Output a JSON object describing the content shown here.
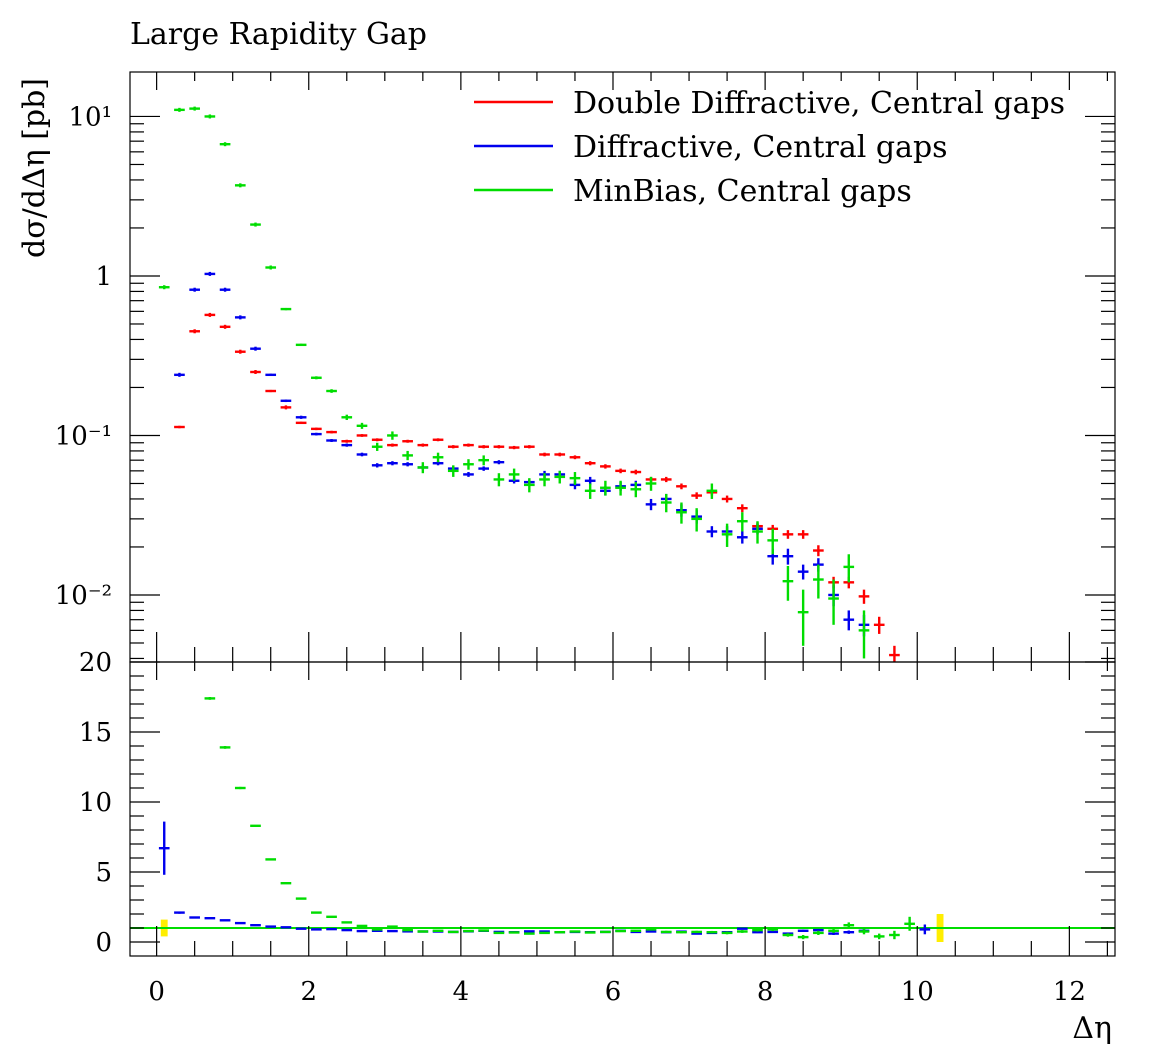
{
  "chart_data": {
    "type": "scatter",
    "title": "Large Rapidity Gap",
    "xlabel": "Δη",
    "ylabel": "dσ/dΔη [pb]",
    "xlim": [
      -0.35,
      12.6
    ],
    "x_ticks": [
      0,
      2,
      4,
      6,
      8,
      10,
      12
    ],
    "x_tick_labels": [
      "0",
      "2",
      "4",
      "6",
      "8",
      "10",
      "12"
    ],
    "upper": {
      "yscale": "log",
      "ylim": [
        0.0038,
        19
      ],
      "y_ticks": [
        0.01,
        0.1,
        1,
        10
      ],
      "y_tick_labels": [
        "10⁻²",
        "10⁻¹",
        "1",
        "10¹"
      ]
    },
    "ratio": {
      "ylim": [
        -1.0,
        20.0
      ],
      "y_ticks": [
        0,
        5,
        10,
        15,
        20
      ],
      "y_tick_labels": [
        "0",
        "5",
        "10",
        "15",
        "20"
      ],
      "reference_line": 1.0
    },
    "legend": {
      "position": "top-right"
    },
    "bin_width": 0.2,
    "series": [
      {
        "name": "Double Diffractive, Central gaps",
        "color": "#ff0000",
        "x": [
          0.3,
          0.5,
          0.7,
          0.9,
          1.1,
          1.3,
          1.5,
          1.7,
          1.9,
          2.1,
          2.3,
          2.5,
          2.7,
          2.9,
          3.1,
          3.3,
          3.5,
          3.7,
          3.9,
          4.1,
          4.3,
          4.5,
          4.7,
          4.9,
          5.1,
          5.3,
          5.5,
          5.7,
          5.9,
          6.1,
          6.3,
          6.5,
          6.7,
          6.9,
          7.1,
          7.3,
          7.5,
          7.7,
          7.9,
          8.1,
          8.3,
          8.5,
          8.7,
          8.9,
          9.1,
          9.3,
          9.5,
          9.7
        ],
        "y": [
          0.113,
          0.45,
          0.57,
          0.48,
          0.335,
          0.25,
          0.19,
          0.15,
          0.12,
          0.11,
          0.105,
          0.092,
          0.1,
          0.094,
          0.087,
          0.092,
          0.087,
          0.094,
          0.085,
          0.087,
          0.085,
          0.085,
          0.084,
          0.085,
          0.076,
          0.076,
          0.073,
          0.067,
          0.064,
          0.06,
          0.059,
          0.053,
          0.053,
          0.048,
          0.042,
          0.044,
          0.04,
          0.035,
          0.027,
          0.026,
          0.024,
          0.024,
          0.019,
          0.012,
          0.012,
          0.0098,
          0.0065,
          0.0042
        ],
        "yerr": [
          0.002,
          0.006,
          0.007,
          0.006,
          0.004,
          0.003,
          0.003,
          0.002,
          0.002,
          0.002,
          0.002,
          0.002,
          0.002,
          0.002,
          0.002,
          0.002,
          0.002,
          0.002,
          0.002,
          0.002,
          0.002,
          0.002,
          0.002,
          0.002,
          0.002,
          0.002,
          0.002,
          0.002,
          0.002,
          0.002,
          0.002,
          0.002,
          0.002,
          0.002,
          0.002,
          0.002,
          0.002,
          0.002,
          0.0015,
          0.0015,
          0.0015,
          0.0015,
          0.0015,
          0.001,
          0.001,
          0.001,
          0.0008,
          0.0006
        ],
        "ratio_y": [],
        "ratio_err": []
      },
      {
        "name": "Diffractive, Central gaps",
        "color": "#0000ee",
        "x": [
          0.3,
          0.5,
          0.7,
          0.9,
          1.1,
          1.3,
          1.5,
          1.7,
          1.9,
          2.1,
          2.3,
          2.5,
          2.7,
          2.9,
          3.1,
          3.3,
          3.5,
          3.7,
          3.9,
          4.1,
          4.3,
          4.5,
          4.7,
          4.9,
          5.1,
          5.3,
          5.5,
          5.7,
          5.9,
          6.1,
          6.3,
          6.5,
          6.7,
          6.9,
          7.1,
          7.3,
          7.5,
          7.7,
          7.9,
          8.1,
          8.3,
          8.5,
          8.7,
          8.9,
          9.1,
          9.3
        ],
        "y": [
          0.24,
          0.82,
          1.03,
          0.82,
          0.55,
          0.35,
          0.24,
          0.165,
          0.13,
          0.102,
          0.093,
          0.087,
          0.076,
          0.065,
          0.067,
          0.066,
          0.063,
          0.067,
          0.062,
          0.057,
          0.062,
          0.068,
          0.052,
          0.051,
          0.057,
          0.057,
          0.049,
          0.052,
          0.045,
          0.048,
          0.049,
          0.037,
          0.04,
          0.034,
          0.031,
          0.025,
          0.025,
          0.023,
          0.026,
          0.0175,
          0.0175,
          0.014,
          0.0155,
          0.01,
          0.007,
          0.0065
        ],
        "yerr": [
          0.003,
          0.01,
          0.012,
          0.01,
          0.007,
          0.005,
          0.004,
          0.003,
          0.003,
          0.002,
          0.002,
          0.002,
          0.002,
          0.002,
          0.002,
          0.002,
          0.002,
          0.002,
          0.002,
          0.002,
          0.002,
          0.002,
          0.002,
          0.002,
          0.003,
          0.003,
          0.003,
          0.003,
          0.003,
          0.003,
          0.003,
          0.003,
          0.003,
          0.003,
          0.003,
          0.002,
          0.002,
          0.002,
          0.002,
          0.002,
          0.002,
          0.0015,
          0.0015,
          0.0015,
          0.001,
          0.001
        ],
        "ratio_y": [
          6.7,
          2.1,
          1.75,
          1.7,
          1.55,
          1.35,
          1.2,
          1.1,
          1.05,
          0.95,
          0.9,
          0.92,
          0.85,
          0.78,
          0.8,
          0.78,
          0.76,
          0.75,
          0.75,
          0.72,
          0.76,
          0.8,
          0.72,
          0.7,
          0.76,
          0.75,
          0.7,
          0.72,
          0.7,
          0.72,
          0.8,
          0.72,
          0.75,
          0.7,
          0.74,
          0.6,
          0.65,
          0.7,
          0.95,
          0.7,
          0.72,
          0.6,
          0.8,
          0.85,
          0.6,
          0.7,
          0.8,
          0.9
        ],
        "ratio_x": [
          0.1,
          0.3,
          0.5,
          0.7,
          0.9,
          1.1,
          1.3,
          1.5,
          1.7,
          1.9,
          2.1,
          2.3,
          2.5,
          2.7,
          2.9,
          3.1,
          3.3,
          3.5,
          3.7,
          3.9,
          4.1,
          4.3,
          4.5,
          4.7,
          4.9,
          5.1,
          5.3,
          5.5,
          5.7,
          5.9,
          6.1,
          6.3,
          6.5,
          6.7,
          6.9,
          7.1,
          7.3,
          7.5,
          7.7,
          7.9,
          8.1,
          8.3,
          8.5,
          8.7,
          8.9,
          9.1,
          9.3,
          10.1
        ],
        "ratio_err": [
          1.9,
          0.08,
          0.05,
          0.04,
          0.04,
          0.03,
          0.03,
          0.03,
          0.03,
          0.03,
          0.03,
          0.03,
          0.03,
          0.03,
          0.03,
          0.03,
          0.03,
          0.03,
          0.03,
          0.03,
          0.03,
          0.03,
          0.03,
          0.03,
          0.03,
          0.03,
          0.03,
          0.03,
          0.03,
          0.03,
          0.04,
          0.04,
          0.04,
          0.04,
          0.04,
          0.04,
          0.05,
          0.05,
          0.06,
          0.06,
          0.07,
          0.07,
          0.08,
          0.08,
          0.1,
          0.12,
          0.15,
          0.35
        ]
      },
      {
        "name": "MinBias, Central gaps",
        "color": "#00dd00",
        "x": [
          0.1,
          0.3,
          0.5,
          0.7,
          0.9,
          1.1,
          1.3,
          1.5,
          1.7,
          1.9,
          2.1,
          2.3,
          2.5,
          2.7,
          2.9,
          3.1,
          3.3,
          3.5,
          3.7,
          3.9,
          4.1,
          4.3,
          4.5,
          4.7,
          4.9,
          5.1,
          5.3,
          5.5,
          5.7,
          5.9,
          6.1,
          6.3,
          6.5,
          6.7,
          6.9,
          7.1,
          7.3,
          7.5,
          7.7,
          7.9,
          8.1,
          8.3,
          8.5,
          8.7,
          8.9,
          9.1,
          9.3
        ],
        "y": [
          0.85,
          11.0,
          11.2,
          10.0,
          6.7,
          3.7,
          2.1,
          1.13,
          0.62,
          0.37,
          0.23,
          0.19,
          0.13,
          0.115,
          0.085,
          0.1,
          0.075,
          0.063,
          0.073,
          0.06,
          0.066,
          0.07,
          0.053,
          0.057,
          0.049,
          0.053,
          0.055,
          0.054,
          0.045,
          0.047,
          0.047,
          0.046,
          0.05,
          0.038,
          0.033,
          0.03,
          0.045,
          0.024,
          0.029,
          0.025,
          0.022,
          0.0122,
          0.0078,
          0.0125,
          0.0095,
          0.015,
          0.006
        ],
        "yerr": [
          0.01,
          0.1,
          0.1,
          0.1,
          0.06,
          0.04,
          0.03,
          0.015,
          0.01,
          0.006,
          0.005,
          0.005,
          0.005,
          0.005,
          0.005,
          0.006,
          0.005,
          0.005,
          0.005,
          0.005,
          0.005,
          0.005,
          0.005,
          0.005,
          0.005,
          0.005,
          0.005,
          0.005,
          0.005,
          0.005,
          0.005,
          0.005,
          0.005,
          0.005,
          0.005,
          0.005,
          0.005,
          0.004,
          0.004,
          0.004,
          0.004,
          0.003,
          0.003,
          0.003,
          0.003,
          0.003,
          0.002
        ],
        "ratio_x": [
          0.7,
          0.9,
          1.1,
          1.3,
          1.5,
          1.7,
          1.9,
          2.1,
          2.3,
          2.5,
          2.7,
          2.9,
          3.1,
          3.3,
          3.5,
          3.7,
          3.9,
          4.1,
          4.3,
          4.5,
          4.7,
          4.9,
          5.1,
          5.3,
          5.5,
          5.7,
          5.9,
          6.1,
          6.3,
          6.5,
          6.7,
          6.9,
          7.1,
          7.3,
          7.5,
          7.7,
          7.9,
          8.1,
          8.3,
          8.5,
          8.7,
          8.9,
          9.1,
          9.3,
          9.5,
          9.7,
          9.9
        ],
        "ratio_y": [
          17.4,
          13.9,
          11.0,
          8.3,
          5.9,
          4.2,
          3.1,
          2.1,
          1.8,
          1.4,
          1.15,
          0.9,
          1.1,
          0.85,
          0.75,
          0.8,
          0.72,
          0.78,
          0.82,
          0.65,
          0.68,
          0.6,
          0.65,
          0.7,
          0.75,
          0.68,
          0.72,
          0.78,
          0.8,
          0.9,
          0.72,
          0.7,
          0.72,
          0.7,
          0.65,
          0.75,
          0.85,
          0.9,
          0.5,
          0.35,
          0.65,
          0.8,
          1.2,
          0.75,
          0.4,
          0.5,
          1.3
        ],
        "ratio_err": [
          0.1,
          0.1,
          0.08,
          0.07,
          0.06,
          0.05,
          0.05,
          0.05,
          0.05,
          0.05,
          0.05,
          0.05,
          0.06,
          0.06,
          0.06,
          0.06,
          0.06,
          0.06,
          0.06,
          0.06,
          0.06,
          0.06,
          0.07,
          0.07,
          0.07,
          0.07,
          0.07,
          0.07,
          0.07,
          0.08,
          0.08,
          0.08,
          0.08,
          0.09,
          0.1,
          0.1,
          0.1,
          0.12,
          0.12,
          0.15,
          0.15,
          0.15,
          0.2,
          0.2,
          0.2,
          0.3,
          0.5
        ]
      }
    ],
    "reference_band": {
      "color": "#ffee00",
      "points": [
        {
          "x": 0.1,
          "half_height": 0.6
        },
        {
          "x": 10.3,
          "half_height": 1.0
        }
      ]
    }
  }
}
